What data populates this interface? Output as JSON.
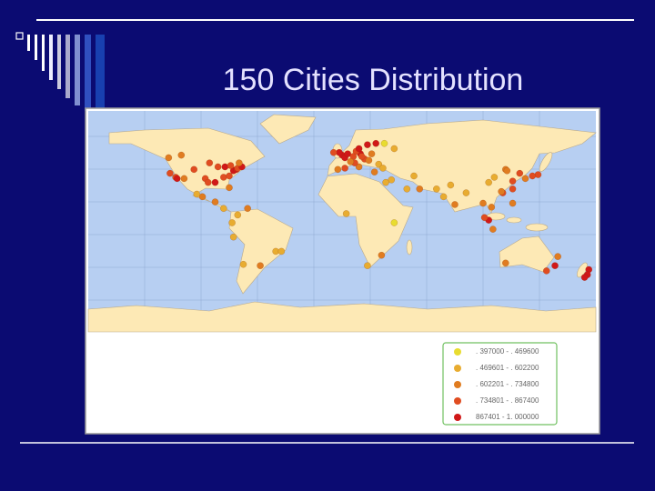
{
  "title": "150 Cities Distribution",
  "legend": [
    {
      "label": ". 397000 - . 469600",
      "color": "#e8dc30"
    },
    {
      "label": ". 469601 - . 602200",
      "color": "#e8ac30"
    },
    {
      "label": ". 602201 - . 734800",
      "color": "#e07c20"
    },
    {
      "label": ". 734801 - . 867400",
      "color": "#e04c20"
    },
    {
      "label": "867401 - 1. 000000",
      "color": "#d01818"
    }
  ],
  "cities": [
    [
      -122,
      37,
      3
    ],
    [
      -118,
      34,
      3
    ],
    [
      -117,
      33,
      4
    ],
    [
      -112,
      33,
      2
    ],
    [
      -105,
      40,
      3
    ],
    [
      -97,
      33,
      3
    ],
    [
      -95,
      30,
      3
    ],
    [
      -90,
      30,
      4
    ],
    [
      -88,
      42,
      3
    ],
    [
      -84,
      34,
      3
    ],
    [
      -83,
      42,
      4
    ],
    [
      -80,
      26,
      2
    ],
    [
      -80,
      35,
      3
    ],
    [
      -77,
      39,
      4
    ],
    [
      -75,
      40,
      4
    ],
    [
      -74,
      41,
      3
    ],
    [
      -71,
      42,
      4
    ],
    [
      -79,
      43,
      3
    ],
    [
      -73,
      45,
      2
    ],
    [
      -123,
      49,
      2
    ],
    [
      -114,
      51,
      2
    ],
    [
      -94,
      45,
      3
    ],
    [
      -99,
      19,
      2
    ],
    [
      -103,
      21,
      1
    ],
    [
      -90,
      15,
      2
    ],
    [
      -84,
      10,
      1
    ],
    [
      -74,
      5,
      1
    ],
    [
      -78,
      -1,
      1
    ],
    [
      -77,
      -12,
      1
    ],
    [
      -47,
      -23,
      1
    ],
    [
      -43,
      -23,
      1
    ],
    [
      -58,
      -34,
      2
    ],
    [
      -70,
      -33,
      1
    ],
    [
      -67,
      10,
      2
    ],
    [
      0,
      51,
      4
    ],
    [
      -2,
      53,
      4
    ],
    [
      2,
      49,
      4
    ],
    [
      4,
      52,
      4
    ],
    [
      8,
      50,
      3
    ],
    [
      13,
      52,
      4
    ],
    [
      10,
      54,
      3
    ],
    [
      18,
      59,
      4
    ],
    [
      12,
      56,
      4
    ],
    [
      24,
      60,
      4
    ],
    [
      -6,
      53,
      3
    ],
    [
      -3,
      40,
      2
    ],
    [
      2,
      41,
      3
    ],
    [
      12,
      42,
      2
    ],
    [
      9,
      45,
      3
    ],
    [
      16,
      48,
      3
    ],
    [
      21,
      52,
      2
    ],
    [
      19,
      47,
      2
    ],
    [
      14,
      50,
      3
    ],
    [
      30,
      60,
      0
    ],
    [
      37,
      56,
      1
    ],
    [
      26,
      44,
      1
    ],
    [
      29,
      41,
      1
    ],
    [
      23,
      38,
      2
    ],
    [
      35,
      32,
      1
    ],
    [
      6,
      46,
      2
    ],
    [
      31,
      30,
      1
    ],
    [
      46,
      25,
      1
    ],
    [
      55,
      25,
      2
    ],
    [
      51,
      35,
      1
    ],
    [
      28,
      -26,
      2
    ],
    [
      18,
      -34,
      1
    ],
    [
      3,
      6,
      1
    ],
    [
      37,
      -1,
      0
    ],
    [
      72,
      19,
      1
    ],
    [
      77,
      28,
      1
    ],
    [
      88,
      22,
      1
    ],
    [
      80,
      13,
      2
    ],
    [
      67,
      25,
      1
    ],
    [
      100,
      14,
      2
    ],
    [
      106,
      11,
      2
    ],
    [
      104,
      1,
      4
    ],
    [
      107,
      -6,
      2
    ],
    [
      101,
      3,
      3
    ],
    [
      121,
      14,
      2
    ],
    [
      114,
      22,
      3
    ],
    [
      121,
      31,
      3
    ],
    [
      116,
      40,
      2
    ],
    [
      126,
      37,
      3
    ],
    [
      139,
      36,
      3
    ],
    [
      135,
      35,
      3
    ],
    [
      130,
      33,
      2
    ],
    [
      113,
      23,
      2
    ],
    [
      104,
      30,
      1
    ],
    [
      121,
      25,
      3
    ],
    [
      117,
      39,
      2
    ],
    [
      108,
      34,
      1
    ],
    [
      151,
      -34,
      4
    ],
    [
      145,
      -38,
      3
    ],
    [
      153,
      -27,
      2
    ],
    [
      116,
      -32,
      2
    ],
    [
      175,
      -37,
      4
    ],
    [
      174,
      -41,
      4
    ],
    [
      172,
      -43,
      4
    ]
  ]
}
